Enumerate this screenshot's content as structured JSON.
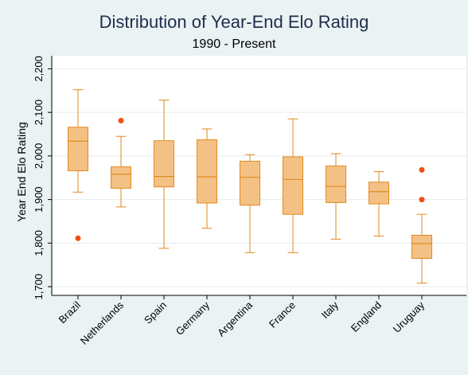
{
  "chart_data": {
    "type": "box",
    "title": "Distribution of Year-End Elo Rating",
    "subtitle": "1990 - Present",
    "ylabel": "Year End Elo Rating",
    "xlabel": "",
    "ylim": [
      1680,
      2230
    ],
    "yticks": [
      1700,
      1800,
      1900,
      2000,
      2100,
      2200
    ],
    "ytick_labels": [
      "1,700",
      "1,800",
      "1,900",
      "2,000",
      "2,100",
      "2,200"
    ],
    "grid": true,
    "colors": {
      "box_fill": "#f4c185",
      "box_stroke": "#e08a1e",
      "outlier": "#f04e14",
      "plot_bg": "#ffffff",
      "page_bg": "#eaf2f3",
      "grid": "#e6ecee"
    },
    "categories": [
      "Brazil",
      "Netherlands",
      "Spain",
      "Germany",
      "Argentina",
      "France",
      "Italy",
      "England",
      "Uruguay"
    ],
    "boxes": [
      {
        "category": "Brazil",
        "whisker_low": 1917,
        "q1": 1966,
        "median": 2034,
        "q3": 2066,
        "whisker_high": 2152,
        "outliers": [
          1811
        ]
      },
      {
        "category": "Netherlands",
        "whisker_low": 1883,
        "q1": 1926,
        "median": 1958,
        "q3": 1975,
        "whisker_high": 2045,
        "outliers": [
          2081
        ]
      },
      {
        "category": "Spain",
        "whisker_low": 1788,
        "q1": 1929,
        "median": 1953,
        "q3": 2035,
        "whisker_high": 2128,
        "outliers": []
      },
      {
        "category": "Germany",
        "whisker_low": 1834,
        "q1": 1892,
        "median": 1952,
        "q3": 2037,
        "whisker_high": 2062,
        "outliers": []
      },
      {
        "category": "Argentina",
        "whisker_low": 1778,
        "q1": 1887,
        "median": 1951,
        "q3": 1988,
        "whisker_high": 2003,
        "outliers": []
      },
      {
        "category": "France",
        "whisker_low": 1778,
        "q1": 1866,
        "median": 1946,
        "q3": 1998,
        "whisker_high": 2085,
        "outliers": []
      },
      {
        "category": "Italy",
        "whisker_low": 1809,
        "q1": 1893,
        "median": 1930,
        "q3": 1977,
        "whisker_high": 2005,
        "outliers": []
      },
      {
        "category": "England",
        "whisker_low": 1816,
        "q1": 1890,
        "median": 1918,
        "q3": 1940,
        "whisker_high": 1964,
        "outliers": []
      },
      {
        "category": "Uruguay",
        "whisker_low": 1708,
        "q1": 1765,
        "median": 1799,
        "q3": 1818,
        "whisker_high": 1866,
        "outliers": [
          1900,
          1968
        ]
      }
    ]
  }
}
